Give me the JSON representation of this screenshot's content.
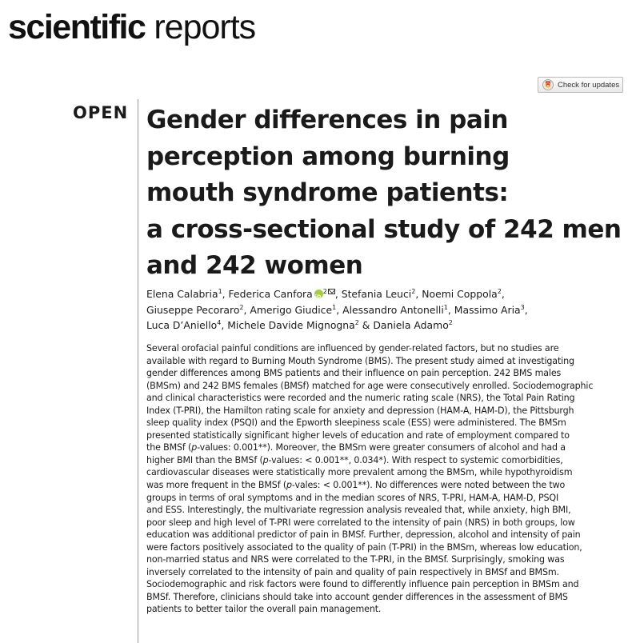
{
  "journal": {
    "name_bold": "scientific",
    "name_light": " reports"
  },
  "check_updates": {
    "label": "Check for updates",
    "icon": "crossmark-icon"
  },
  "article": {
    "open_label": "OPEN",
    "title_lines": [
      "Gender differences in pain",
      "perception among burning",
      "mouth syndrome patients:",
      "a cross-sectional study of 242 men",
      "and 242 women"
    ],
    "authors": {
      "a1": "Elena Calabria",
      "a1_sup": "1",
      "a2": "Federica Canfora",
      "a2_sup": "2",
      "a3": "Stefania Leuci",
      "a3_sup": "2",
      "a4": "Noemi Coppola",
      "a4_sup": "2",
      "a5": "Giuseppe Pecoraro",
      "a5_sup": "2",
      "a6": "Amerigo Giudice",
      "a6_sup": "1",
      "a7": "Alessandro Antonelli",
      "a7_sup": "1",
      "a8": "Massimo Aria",
      "a8_sup": "3",
      "a9": "Luca D’Aniello",
      "a9_sup": "4",
      "a10": "Michele Davide Mignogna",
      "a10_sup": "2",
      "a11": "Daniela Adamo",
      "a11_sup": "2",
      "sep": ", ",
      "amp": " & "
    },
    "abstract": {
      "l1": "Several orofacial painful conditions are influenced by gender-related factors, but no studies are",
      "l2": "available with regard to Burning Mouth Syndrome (BMS). The present study aimed at investigating",
      "l3": "gender differences among BMS patients and their influence on pain perception. 242 BMS males",
      "l4": "(BMSm) and 242 BMS females (BMSf) matched for age were consecutively enrolled. Sociodemographic",
      "l5": "and clinical characteristics were recorded and the numeric rating scale (NRS), the Total Pain Rating",
      "l6": "Index (T-PRI), the Hamilton rating scale for anxiety and depression (HAM-A, HAM-D), the Pittsburgh",
      "l7": "sleep quality index (PSQI) and the Epworth sleepiness scale (ESS) were administered. The BMSm",
      "l8": "presented statistically significant higher levels of education and rate of employment compared to",
      "l9_a": "the BMSf (",
      "l9_p": "p",
      "l9_b": "-values: 0.001**). Moreover, the BMSm were greater consumers of alcohol and had a",
      "l10_a": "higher BMI than the BMSf (",
      "l10_p": "p",
      "l10_b": "-values: < 0.001**, 0.034*). With respect to systemic comorbidities,",
      "l11": "cardiovascular diseases were statistically more prevalent among the BMSm, while hypothyroidism",
      "l12_a": "was more frequent in the BMSf (",
      "l12_p": "p",
      "l12_b": "-vales: < 0.001**). No differences were noted between the two",
      "l13": "groups in terms of oral symptoms and in the median scores of NRS, T-PRI, HAM-A, HAM-D, PSQI",
      "l14": "and ESS. Interestingly, the multivariate regression analysis revealed that, while anxiety, high BMI,",
      "l15": "poor sleep and high level of T-PRI were correlated to the intensity of pain (NRS) in both groups, low",
      "l16": "education was additional predictor of pain in BMSf. Further, depression, alcohol and intensity of pain",
      "l17": "were factors positively associated to the quality of pain (T-PRI) in the BMSm, whereas low education,",
      "l18": "non-married status and NRS were correlated to the T-PRI, in the BMSf. Surprisingly, smoking was",
      "l19": "inversely correlated to the intensity of pain and quality of pain respectively in BMSf and BMSm.",
      "l20": "Sociodemographic and risk factors were found to differently influence pain perception in BMSm and",
      "l21": "BMSf. Therefore, clinicians should take into account gender differences in the assessment of BMS",
      "l22": "patients to better tailor the overall pain management."
    }
  }
}
